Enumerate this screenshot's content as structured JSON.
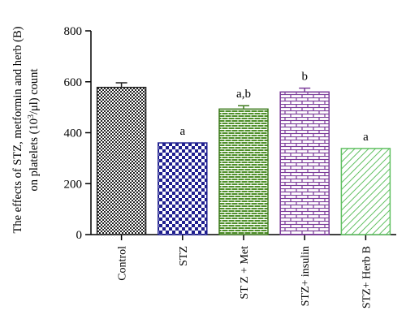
{
  "chart_data": {
    "type": "bar",
    "title": "",
    "ylabel_line1": "The effects of STZ, metformin and herb (B)",
    "ylabel_line2_prefix": "on platelets (10",
    "ylabel_line2_sup": "3",
    "ylabel_line2_suffix": "/μl) count",
    "xlabel": "",
    "ylim": [
      0,
      800
    ],
    "yticks": [
      "0",
      "200",
      "400",
      "600",
      "800"
    ],
    "categories": [
      "Control",
      "STZ",
      "ST Z + Met",
      "STZ+ insulin",
      "STZ+ Herb B"
    ],
    "values": [
      578,
      360,
      493,
      560,
      338
    ],
    "errors": [
      18,
      0,
      13,
      15,
      0
    ],
    "annotations": [
      "",
      "a",
      "a,b",
      "b",
      "a"
    ],
    "colors": [
      "#222222",
      "#1f1f8f",
      "#3d7a1c",
      "#7a3a98",
      "#5fbf60"
    ],
    "patterns": [
      "checker-fine",
      "checker-large",
      "brick-green",
      "brick-purple",
      "diagonal"
    ]
  }
}
